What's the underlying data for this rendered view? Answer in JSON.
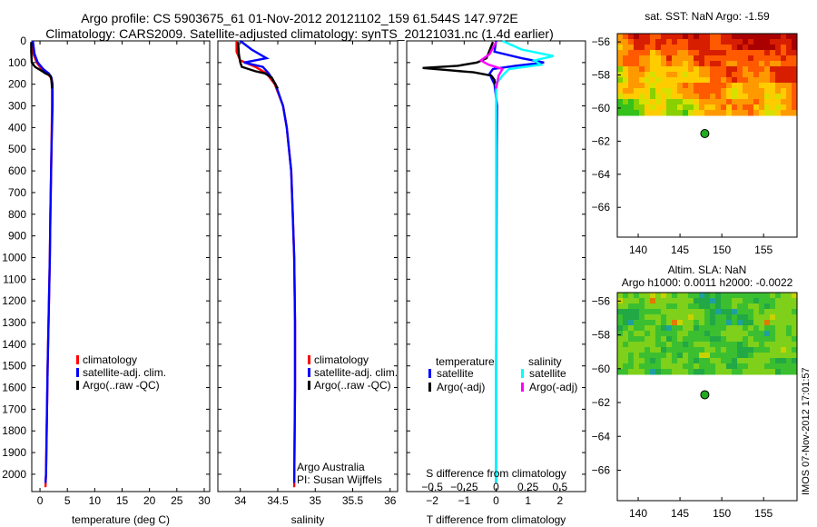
{
  "header": {
    "title_line1": "Argo profile: CS 5903675_61 01-Nov-2012 20121102_159 61.544S 147.972E",
    "title_line2": "Climatology: CARS2009. Satellite-adjusted climatology: synTS_20121031.nc (1.4d earlier)"
  },
  "colors": {
    "climatology": "#ff0000",
    "satellite": "#0000ff",
    "argo": "#000000",
    "sal_satellite": "#00ffff",
    "sal_argo": "#ff00ff",
    "marker": "#22aa22"
  },
  "chart_data": [
    {
      "type": "line",
      "name": "temperature",
      "xlabel": "temperature (deg C)",
      "ylabel": "",
      "xlim": [
        -1.5,
        31
      ],
      "ylim": [
        2080,
        0
      ],
      "x_ticks": [
        0,
        5,
        10,
        15,
        20,
        25,
        30
      ],
      "y_ticks": [
        0,
        100,
        200,
        300,
        400,
        500,
        600,
        700,
        800,
        900,
        1000,
        1100,
        1200,
        1300,
        1400,
        1500,
        1600,
        1700,
        1800,
        1900,
        2000
      ],
      "legend": [
        "climatology",
        "satellite-adj. clim.",
        "Argo(..raw -QC)"
      ],
      "series": [
        {
          "name": "climatology",
          "depth": [
            0,
            60,
            100,
            130,
            150,
            170,
            200,
            300,
            500,
            800,
            1000,
            1500,
            2000,
            2060
          ],
          "values": [
            -1.4,
            -1.2,
            -0.6,
            0.3,
            1.3,
            2.0,
            2.2,
            2.2,
            2.1,
            1.9,
            1.8,
            1.4,
            1.1,
            1.0
          ]
        },
        {
          "name": "satellite-adj. clim.",
          "depth": [
            0,
            60,
            100,
            130,
            150,
            170,
            200,
            300,
            500,
            800,
            1000,
            1500,
            2000,
            2040
          ],
          "values": [
            -1.3,
            -1.0,
            -0.4,
            0.6,
            1.6,
            2.1,
            2.3,
            2.3,
            2.1,
            1.9,
            1.8,
            1.4,
            1.1,
            1.0
          ]
        },
        {
          "name": "Argo(..raw -QC)",
          "depth": [
            5,
            50,
            100,
            120,
            140,
            150,
            160,
            180,
            220
          ],
          "values": [
            -1.6,
            -1.6,
            -1.5,
            -0.9,
            0.4,
            1.0,
            1.9,
            2.1,
            2.2
          ]
        }
      ]
    },
    {
      "type": "line",
      "name": "salinity",
      "xlabel": "salinity",
      "xlim": [
        33.7,
        36.1
      ],
      "ylim": [
        2080,
        0
      ],
      "x_ticks": [
        34,
        34.5,
        35,
        35.5,
        36
      ],
      "legend": [
        "climatology",
        "satellite-adj. clim.",
        "Argo(..raw -QC)"
      ],
      "annotation_lines": [
        "Argo Australia",
        "PI: Susan Wijffels"
      ],
      "series": [
        {
          "name": "climatology",
          "depth": [
            0,
            50,
            90,
            120,
            150,
            200,
            300,
            400,
            600,
            800,
            1000,
            1300,
            1600,
            2060
          ],
          "values": [
            33.95,
            33.95,
            34.0,
            34.2,
            34.35,
            34.46,
            34.57,
            34.62,
            34.68,
            34.7,
            34.72,
            34.73,
            34.73,
            34.72
          ]
        },
        {
          "name": "satellite-adj. clim.",
          "depth": [
            0,
            40,
            80,
            100,
            120,
            150,
            200,
            300,
            400,
            600,
            800,
            1000,
            1300,
            1600,
            2040
          ],
          "values": [
            34.0,
            34.15,
            34.35,
            34.05,
            34.3,
            34.38,
            34.47,
            34.57,
            34.62,
            34.68,
            34.7,
            34.72,
            34.73,
            34.73,
            34.72
          ]
        },
        {
          "name": "Argo(..raw -QC)",
          "depth": [
            5,
            60,
            100,
            120,
            140,
            150,
            170,
            220
          ],
          "values": [
            33.97,
            33.98,
            34.0,
            34.02,
            34.2,
            34.33,
            34.42,
            34.5
          ]
        }
      ]
    },
    {
      "type": "line",
      "name": "difference",
      "xlabel": "T difference from climatology",
      "xlabel_top": "S difference from climatology",
      "xlim": [
        -2.8,
        2.8
      ],
      "ylim": [
        2080,
        0
      ],
      "x_ticks": [
        -2,
        -1,
        0,
        1,
        2
      ],
      "x_ticks_top": [
        -0.5,
        -0.25,
        0,
        0.25,
        0.5
      ],
      "legend_groups": [
        "temperature",
        "salinity"
      ],
      "legend": [
        "satellite",
        "Argo(-adj)",
        "satellite",
        "Argo(-adj)"
      ],
      "series": [
        {
          "name": "T satellite",
          "depth": [
            0,
            50,
            80,
            100,
            115,
            130,
            150,
            170,
            200,
            300,
            500,
            1000,
            1500,
            2040
          ],
          "values": [
            0.0,
            -0.05,
            0.8,
            1.5,
            0.6,
            -0.1,
            -0.2,
            -0.15,
            -0.05,
            0.03,
            0.02,
            0.01,
            0.0,
            0.0
          ]
        },
        {
          "name": "T Argo(-adj)",
          "depth": [
            5,
            80,
            100,
            115,
            125,
            135,
            145,
            160,
            180,
            220
          ],
          "values": [
            -0.1,
            -0.3,
            -0.6,
            -1.2,
            -2.3,
            -1.5,
            -0.7,
            -0.15,
            -0.05,
            0.0
          ]
        },
        {
          "name": "S satellite",
          "depth": [
            0,
            40,
            70,
            90,
            110,
            130,
            160,
            200,
            500,
            1000,
            2040
          ],
          "values": [
            0.05,
            0.2,
            0.45,
            0.3,
            0.35,
            0.1,
            0.05,
            0.0,
            0.0,
            0.0,
            0.0
          ]
        },
        {
          "name": "S Argo(-adj)",
          "depth": [
            5,
            60,
            90,
            110,
            130,
            160,
            220
          ],
          "values": [
            0.0,
            -0.05,
            -0.12,
            -0.06,
            0.05,
            0.02,
            0.0
          ]
        }
      ]
    },
    {
      "type": "heatmap",
      "name": "sst_map",
      "title": "sat. SST: NaN Argo: -1.59",
      "xlim": [
        137.5,
        159
      ],
      "ylim": [
        -67.8,
        -55.5
      ],
      "x_ticks": [
        140,
        145,
        150,
        155
      ],
      "y_ticks": [
        -56,
        -58,
        -60,
        -62,
        -64,
        -66
      ],
      "data_extent": {
        "lon": [
          137.5,
          159
        ],
        "lat": [
          -60.2,
          -55.5
        ]
      },
      "argo_position": {
        "lon": 147.97,
        "lat": -61.54
      }
    },
    {
      "type": "heatmap",
      "name": "sla_map",
      "title_line1": "Altim. SLA: NaN",
      "title_line2": "Argo h1000: 0.0011 h2000: -0.0022",
      "xlim": [
        137.5,
        159
      ],
      "ylim": [
        -67.8,
        -55.5
      ],
      "x_ticks": [
        140,
        145,
        150,
        155
      ],
      "y_ticks": [
        -56,
        -58,
        -60,
        -62,
        -64,
        -66
      ],
      "data_extent": {
        "lon": [
          137.5,
          159
        ],
        "lat": [
          -60.2,
          -55.5
        ]
      },
      "argo_position": {
        "lon": 147.97,
        "lat": -61.54
      }
    }
  ],
  "footer": {
    "stamp": "IMOS 07-Nov-2012 17:01:57"
  }
}
